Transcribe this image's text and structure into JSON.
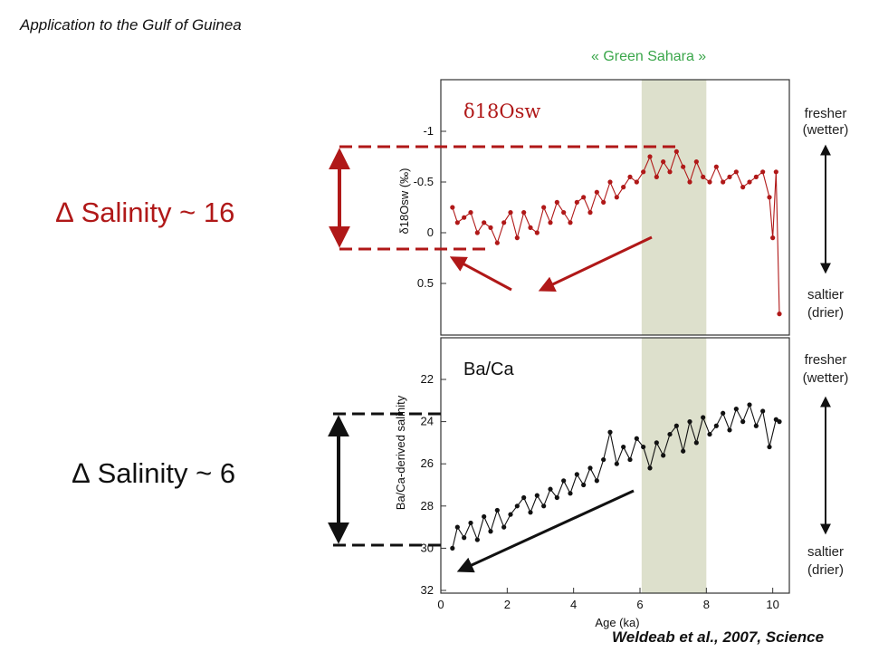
{
  "slide": {
    "title": "Application to the Gulf of Guinea",
    "green_sahara_label": "« Green Sahara »",
    "delta_top": "∆ Salinity ~ 16",
    "delta_bottom": "∆ Salinity ~ 6",
    "citation": "Weldeab et al., 2007, Science"
  },
  "colors": {
    "red": "#b01818",
    "band": "#dde0cc",
    "black": "#111111",
    "green_text": "#3aa64a"
  },
  "side_labels": {
    "fresher": "fresher",
    "wetter": "(wetter)",
    "saltier": "saltier",
    "drier": "(drier)"
  },
  "chart_data": [
    {
      "type": "line",
      "title": "",
      "inset_label": "δ18Osw",
      "xlabel": "",
      "ylabel": "δ18Osw (‰)",
      "x_range": [
        0,
        10.5
      ],
      "ylim": [
        -1.5,
        1.0
      ],
      "y_inverted": true,
      "yticks": [
        -1,
        -0.5,
        0,
        0.5
      ],
      "ytick_labels": [
        "-1",
        "-0.5",
        "0",
        "0.5"
      ],
      "highlight_band": [
        6.05,
        8.0
      ],
      "series": [
        {
          "color": "#b01818",
          "x": [
            0.35,
            0.5,
            0.7,
            0.9,
            1.1,
            1.3,
            1.5,
            1.7,
            1.9,
            2.1,
            2.3,
            2.5,
            2.7,
            2.9,
            3.1,
            3.3,
            3.5,
            3.7,
            3.9,
            4.1,
            4.3,
            4.5,
            4.7,
            4.9,
            5.1,
            5.3,
            5.5,
            5.7,
            5.9,
            6.1,
            6.3,
            6.5,
            6.7,
            6.9,
            7.1,
            7.3,
            7.5,
            7.7,
            7.9,
            8.1,
            8.3,
            8.5,
            8.7,
            8.9,
            9.1,
            9.3,
            9.5,
            9.7,
            9.9,
            10.0,
            10.1,
            10.2
          ],
          "y": [
            -0.25,
            -0.1,
            -0.15,
            -0.2,
            0.0,
            -0.1,
            -0.05,
            0.1,
            -0.1,
            -0.2,
            0.05,
            -0.2,
            -0.05,
            0.0,
            -0.25,
            -0.1,
            -0.3,
            -0.2,
            -0.1,
            -0.3,
            -0.35,
            -0.2,
            -0.4,
            -0.3,
            -0.5,
            -0.35,
            -0.45,
            -0.55,
            -0.5,
            -0.6,
            -0.75,
            -0.55,
            -0.7,
            -0.6,
            -0.8,
            -0.65,
            -0.5,
            -0.7,
            -0.55,
            -0.5,
            -0.65,
            -0.5,
            -0.55,
            -0.6,
            -0.45,
            -0.5,
            -0.55,
            -0.6,
            -0.35,
            0.05,
            -0.6,
            0.8
          ]
        }
      ]
    },
    {
      "type": "line",
      "title": "",
      "inset_label": "Ba/Ca",
      "xlabel": "Age (ka)",
      "ylabel": "Ba/Ca-derived salinity",
      "xlim": [
        0,
        10.5
      ],
      "xticks": [
        0,
        2,
        4,
        6,
        8,
        10
      ],
      "xtick_labels": [
        "0",
        "2",
        "4",
        "6",
        "8",
        "10"
      ],
      "ylim": [
        32,
        20.3
      ],
      "y_inverted": true,
      "yticks": [
        22,
        24,
        26,
        28,
        30,
        32
      ],
      "ytick_labels": [
        "22",
        "24",
        "26",
        "28",
        "30",
        "32"
      ],
      "highlight_band": [
        6.05,
        8.0
      ],
      "series": [
        {
          "color": "#111111",
          "x": [
            0.35,
            0.5,
            0.7,
            0.9,
            1.1,
            1.3,
            1.5,
            1.7,
            1.9,
            2.1,
            2.3,
            2.5,
            2.7,
            2.9,
            3.1,
            3.3,
            3.5,
            3.7,
            3.9,
            4.1,
            4.3,
            4.5,
            4.7,
            4.9,
            5.1,
            5.3,
            5.5,
            5.7,
            5.9,
            6.1,
            6.3,
            6.5,
            6.7,
            6.9,
            7.1,
            7.3,
            7.5,
            7.7,
            7.9,
            8.1,
            8.3,
            8.5,
            8.7,
            8.9,
            9.1,
            9.3,
            9.5,
            9.7,
            9.9,
            10.1,
            10.2
          ],
          "y": [
            30.0,
            29.0,
            29.5,
            28.8,
            29.6,
            28.5,
            29.2,
            28.2,
            29.0,
            28.4,
            28.0,
            27.6,
            28.3,
            27.5,
            28.0,
            27.2,
            27.6,
            26.8,
            27.4,
            26.5,
            27.0,
            26.2,
            26.8,
            25.8,
            24.5,
            26.0,
            25.2,
            25.8,
            24.8,
            25.2,
            26.2,
            25.0,
            25.6,
            24.6,
            24.2,
            25.4,
            24.0,
            25.0,
            23.8,
            24.6,
            24.2,
            23.6,
            24.4,
            23.4,
            24.0,
            23.2,
            24.2,
            23.5,
            25.2,
            23.9,
            24.0
          ]
        }
      ]
    }
  ]
}
